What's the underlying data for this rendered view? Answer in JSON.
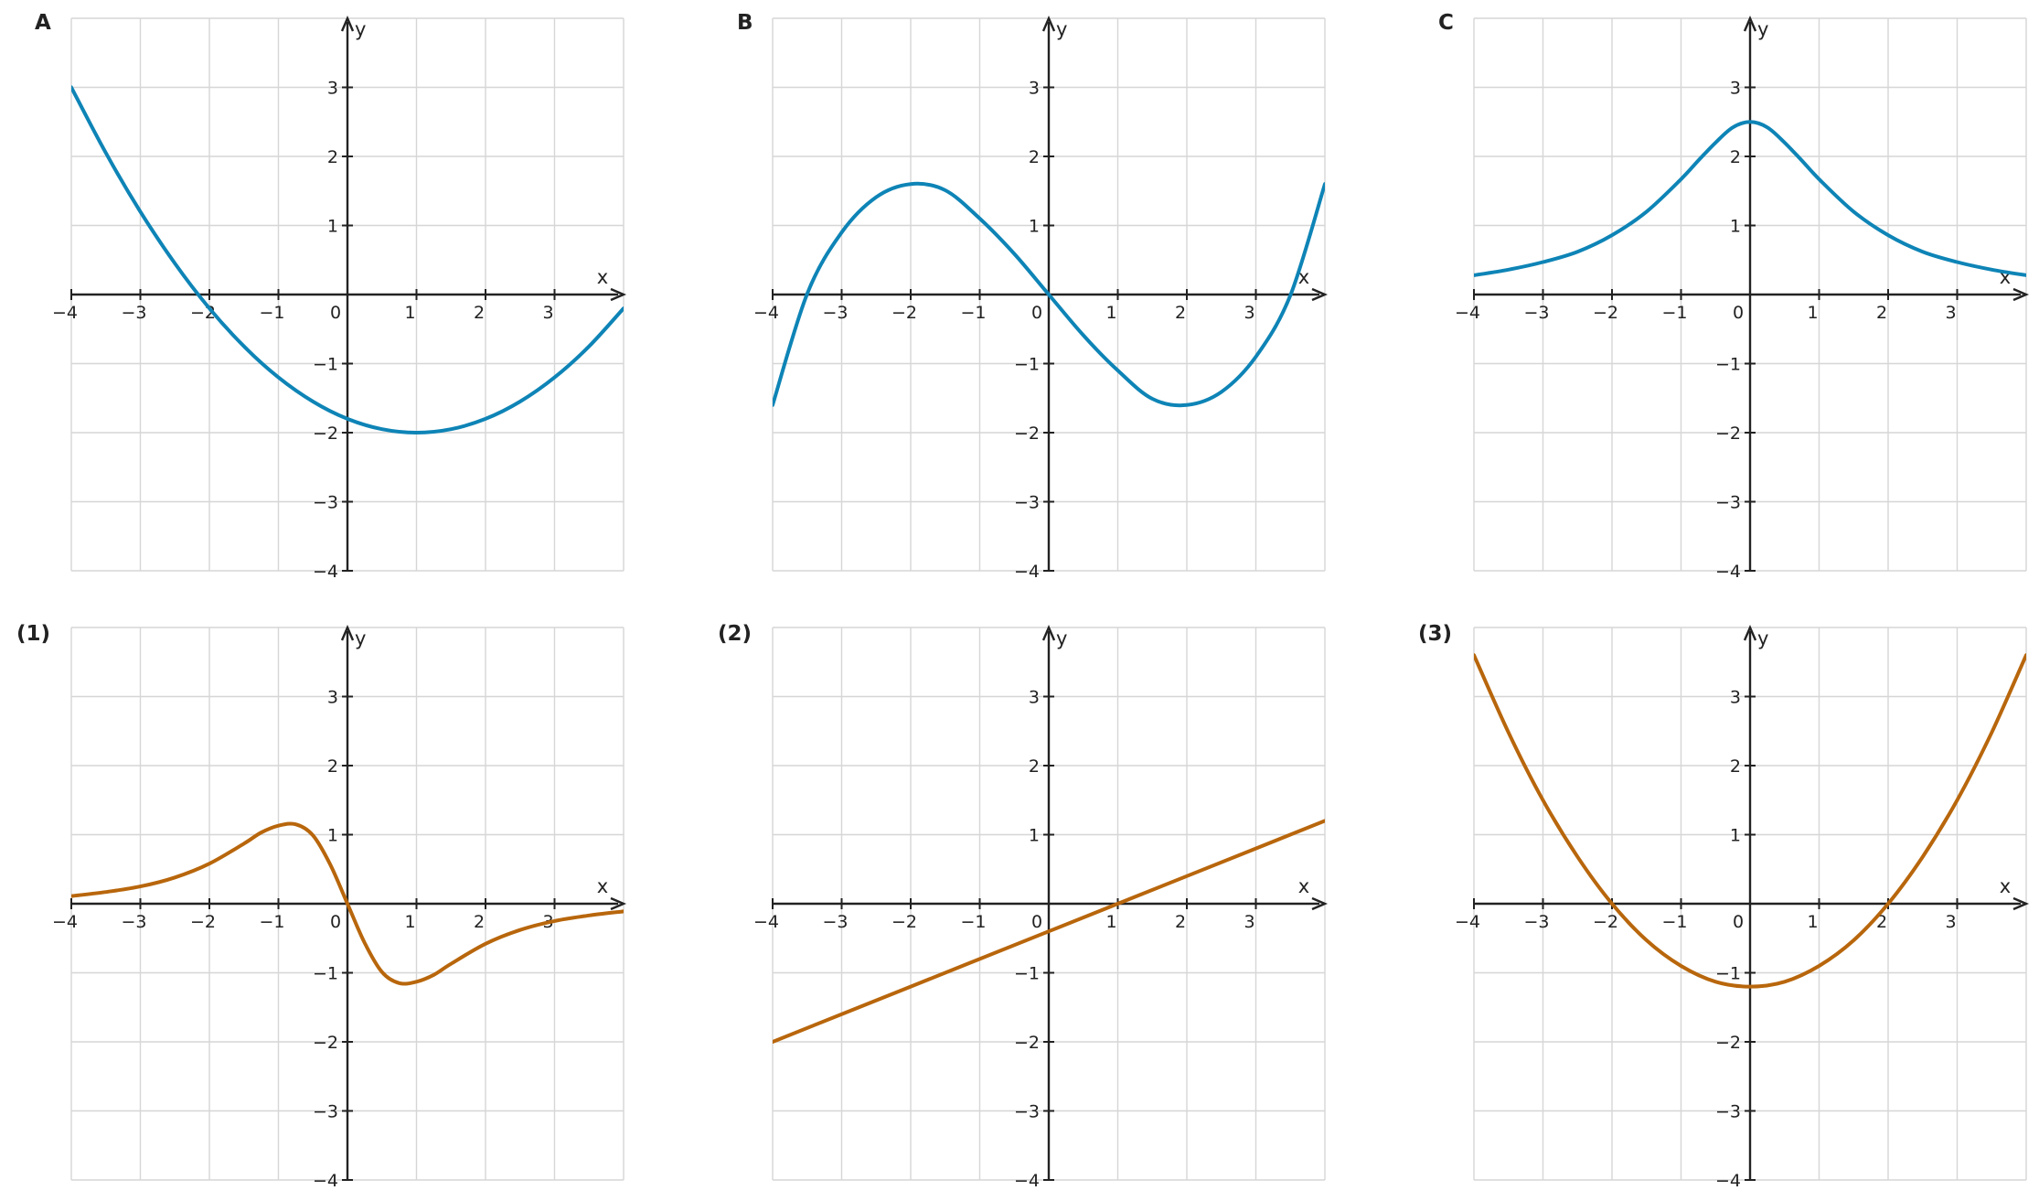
{
  "chart_data": [
    {
      "type": "line",
      "panel": "A",
      "title": "A",
      "xlabel": "x",
      "ylabel": "y",
      "xlim": [
        -4,
        4
      ],
      "ylim": [
        -4,
        4
      ],
      "grid": true,
      "xticks": [
        -4,
        -3,
        -2,
        -1,
        0,
        1,
        2,
        3
      ],
      "yticks": [
        -4,
        -3,
        -2,
        -1,
        1,
        2,
        3
      ],
      "xtick_labels": [
        "−4",
        "−3",
        "−2",
        "−1",
        "0",
        "1",
        "2",
        "3"
      ],
      "ytick_labels": [
        "−4",
        "−3",
        "−2",
        "−1",
        "1",
        "2",
        "3"
      ],
      "color": "#0e84b6",
      "series": [
        {
          "x": [
            -4,
            -3.5,
            -3,
            -2.5,
            -2,
            -1.5,
            -1,
            -0.5,
            0,
            0.5,
            1,
            1.5,
            2,
            2.5,
            3,
            3.5,
            4
          ],
          "y": [
            3.0,
            2.05,
            1.2,
            0.45,
            -0.2,
            -0.75,
            -1.2,
            -1.55,
            -1.8,
            -1.95,
            -2.0,
            -1.95,
            -1.8,
            -1.55,
            -1.2,
            -0.75,
            -0.2
          ]
        }
      ]
    },
    {
      "type": "line",
      "panel": "B",
      "title": "B",
      "xlabel": "x",
      "ylabel": "y",
      "xlim": [
        -4,
        4
      ],
      "ylim": [
        -4,
        4
      ],
      "grid": true,
      "xticks": [
        -4,
        -3,
        -2,
        -1,
        0,
        1,
        2,
        3
      ],
      "yticks": [
        -4,
        -3,
        -2,
        -1,
        1,
        2,
        3
      ],
      "xtick_labels": [
        "−4",
        "−3",
        "−2",
        "−1",
        "0",
        "1",
        "2",
        "3"
      ],
      "ytick_labels": [
        "−4",
        "−3",
        "−2",
        "−1",
        "1",
        "2",
        "3"
      ],
      "color": "#0e84b6",
      "series": [
        {
          "x": [
            -4,
            -3.5,
            -3,
            -2.5,
            -2,
            -1.5,
            -1,
            -0.5,
            0,
            0.5,
            1,
            1.5,
            2,
            2.5,
            3,
            3.5,
            4
          ],
          "y": [
            -1.6,
            0.01,
            0.9,
            1.41,
            1.6,
            1.51,
            1.1,
            0.59,
            0.0,
            -0.59,
            -1.1,
            -1.51,
            -1.6,
            -1.41,
            -0.9,
            -0.01,
            1.6
          ]
        }
      ]
    },
    {
      "type": "line",
      "panel": "C",
      "title": "C",
      "xlabel": "x",
      "ylabel": "y",
      "xlim": [
        -4,
        4
      ],
      "ylim": [
        -4,
        4
      ],
      "grid": true,
      "xticks": [
        -4,
        -3,
        -2,
        -1,
        0,
        1,
        2,
        3
      ],
      "yticks": [
        -4,
        -3,
        -2,
        -1,
        1,
        2,
        3
      ],
      "xtick_labels": [
        "−4",
        "−3",
        "−2",
        "−1",
        "0",
        "1",
        "2",
        "3"
      ],
      "ytick_labels": [
        "−4",
        "−3",
        "−2",
        "−1",
        "1",
        "2",
        "3"
      ],
      "color": "#0e84b6",
      "series": [
        {
          "x": [
            -4,
            -3.5,
            -3,
            -2.5,
            -2,
            -1.5,
            -1,
            -0.75,
            -0.5,
            -0.25,
            0,
            0.25,
            0.5,
            0.75,
            1,
            1.5,
            2,
            2.5,
            3,
            3.5,
            4
          ],
          "y": [
            0.28,
            0.36,
            0.47,
            0.62,
            0.86,
            1.2,
            1.67,
            1.94,
            2.2,
            2.42,
            2.5,
            2.42,
            2.2,
            1.94,
            1.67,
            1.2,
            0.86,
            0.62,
            0.47,
            0.36,
            0.28
          ]
        }
      ]
    },
    {
      "type": "line",
      "panel": "(1)",
      "title": "(1)",
      "xlabel": "x",
      "ylabel": "y",
      "xlim": [
        -4,
        4
      ],
      "ylim": [
        -4,
        4
      ],
      "grid": true,
      "xticks": [
        -4,
        -3,
        -2,
        -1,
        0,
        1,
        2,
        3
      ],
      "yticks": [
        -4,
        -3,
        -2,
        -1,
        1,
        2,
        3
      ],
      "xtick_labels": [
        "−4",
        "−3",
        "−2",
        "−1",
        "0",
        "1",
        "2",
        "3"
      ],
      "ytick_labels": [
        "−4",
        "−3",
        "−2",
        "−1",
        "1",
        "2",
        "3"
      ],
      "color": "#b8660c",
      "series": [
        {
          "x": [
            -4,
            -3.5,
            -3,
            -2.5,
            -2,
            -1.5,
            -1.25,
            -1,
            -0.75,
            -0.5,
            -0.25,
            0,
            0.25,
            0.5,
            0.75,
            1,
            1.25,
            1.5,
            2,
            2.5,
            3,
            3.5,
            4
          ],
          "y": [
            0.11,
            0.17,
            0.25,
            0.38,
            0.58,
            0.87,
            1.03,
            1.13,
            1.15,
            0.99,
            0.57,
            0.0,
            -0.57,
            -0.99,
            -1.15,
            -1.13,
            -1.03,
            -0.87,
            -0.58,
            -0.38,
            -0.25,
            -0.17,
            -0.11
          ]
        }
      ]
    },
    {
      "type": "line",
      "panel": "(2)",
      "title": "(2)",
      "xlabel": "x",
      "ylabel": "y",
      "xlim": [
        -4,
        4
      ],
      "ylim": [
        -4,
        4
      ],
      "grid": true,
      "xticks": [
        -4,
        -3,
        -2,
        -1,
        0,
        1,
        2,
        3
      ],
      "yticks": [
        -4,
        -3,
        -2,
        -1,
        1,
        2,
        3
      ],
      "xtick_labels": [
        "−4",
        "−3",
        "−2",
        "−1",
        "0",
        "1",
        "2",
        "3"
      ],
      "ytick_labels": [
        "−4",
        "−3",
        "−2",
        "−1",
        "1",
        "2",
        "3"
      ],
      "color": "#b8660c",
      "series": [
        {
          "x": [
            -4,
            -2,
            0,
            1,
            2,
            4
          ],
          "y": [
            -2.0,
            -1.2,
            -0.4,
            0.0,
            0.4,
            1.2
          ]
        }
      ]
    },
    {
      "type": "line",
      "panel": "(3)",
      "title": "(3)",
      "xlabel": "x",
      "ylabel": "y",
      "xlim": [
        -4,
        4
      ],
      "ylim": [
        -4,
        4
      ],
      "grid": true,
      "xticks": [
        -4,
        -3,
        -2,
        -1,
        0,
        1,
        2,
        3
      ],
      "yticks": [
        -4,
        -3,
        -2,
        -1,
        1,
        2,
        3
      ],
      "xtick_labels": [
        "−4",
        "−3",
        "−2",
        "−1",
        "0",
        "1",
        "2",
        "3"
      ],
      "ytick_labels": [
        "−4",
        "−3",
        "−2",
        "−1",
        "1",
        "2",
        "3"
      ],
      "color": "#b8660c",
      "series": [
        {
          "x": [
            -4,
            -3.5,
            -3,
            -2.5,
            -2,
            -1.5,
            -1,
            -0.5,
            0,
            0.5,
            1,
            1.5,
            2,
            2.5,
            3,
            3.5,
            4
          ],
          "y": [
            3.6,
            2.48,
            1.5,
            0.68,
            0.0,
            -0.53,
            -0.9,
            -1.13,
            -1.2,
            -1.13,
            -0.9,
            -0.53,
            0.0,
            0.68,
            1.5,
            2.48,
            3.6
          ]
        }
      ]
    }
  ],
  "colors": {
    "grid": "#d6d6d6",
    "axis": "#222222",
    "text": "#222222"
  }
}
